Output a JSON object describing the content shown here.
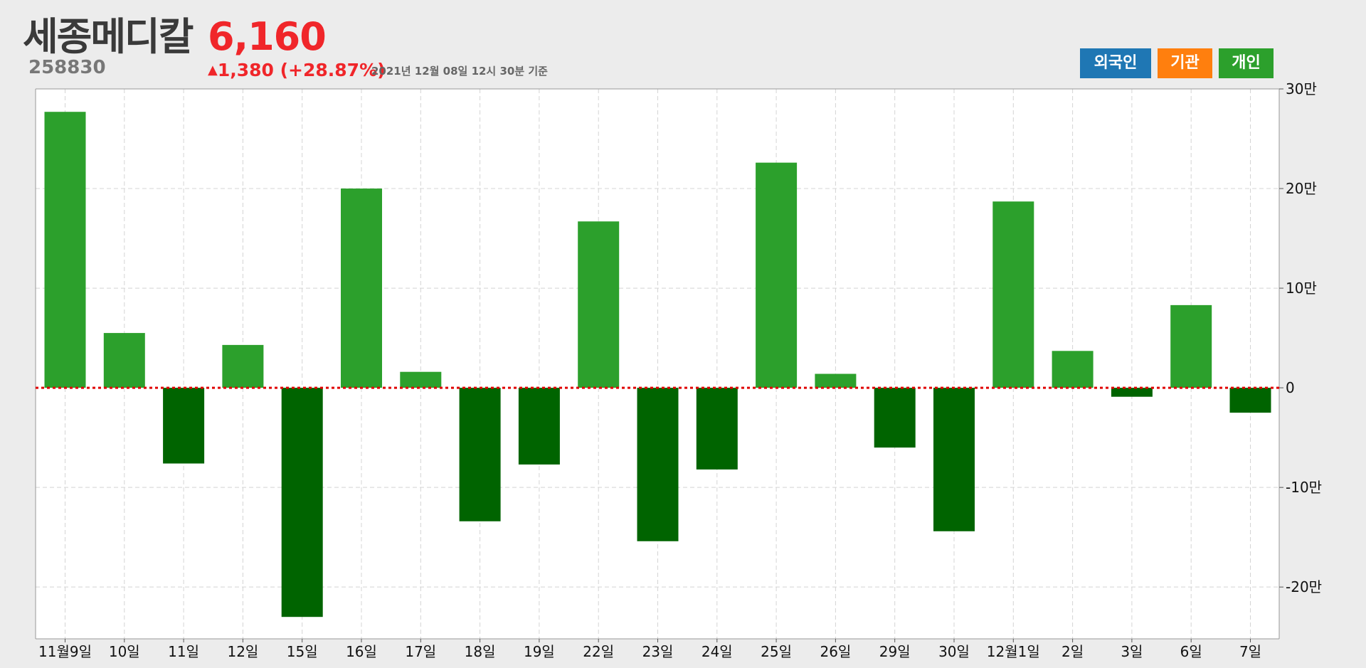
{
  "header": {
    "name": "세종메디칼",
    "code": "258830",
    "price": "6,160",
    "change_arrow": "▲",
    "change_text": "1,380 (+28.87%)",
    "timestamp": "2021년 12월 08일 12시 30분 기준"
  },
  "legend": [
    {
      "label": "외국인",
      "color": "#1f77b4"
    },
    {
      "label": "기관",
      "color": "#ff7f0e"
    },
    {
      "label": "개인",
      "color": "#2ca02c"
    }
  ],
  "colors": {
    "positive": "#2ca02c",
    "negative": "#006400",
    "zero_line": "#e00000",
    "grid": "#d4d4d4",
    "plot_bg": "#ffffff"
  },
  "chart_data": {
    "type": "bar",
    "series_name": "개인",
    "categories": [
      "11월9일",
      "10일",
      "11일",
      "12일",
      "15일",
      "16일",
      "17일",
      "18일",
      "19일",
      "22일",
      "23일",
      "24일",
      "25일",
      "26일",
      "29일",
      "30일",
      "12월1일",
      "2일",
      "3일",
      "6일",
      "7일"
    ],
    "values": [
      277000,
      55000,
      -76000,
      43000,
      -230000,
      200000,
      16000,
      -134000,
      -77000,
      167000,
      -154000,
      -82000,
      226000,
      14000,
      -60000,
      -144000,
      187000,
      37000,
      -9000,
      83000,
      -25000
    ],
    "ylim": [
      -252000,
      300000
    ],
    "yticks": [
      -200000,
      -100000,
      0,
      100000,
      200000,
      300000
    ],
    "ytick_labels": [
      "-20만",
      "-10만",
      "0",
      "10만",
      "20만",
      "30만"
    ],
    "grid": true,
    "y_axis_position": "right",
    "xlabel": "",
    "ylabel": "",
    "title": ""
  }
}
